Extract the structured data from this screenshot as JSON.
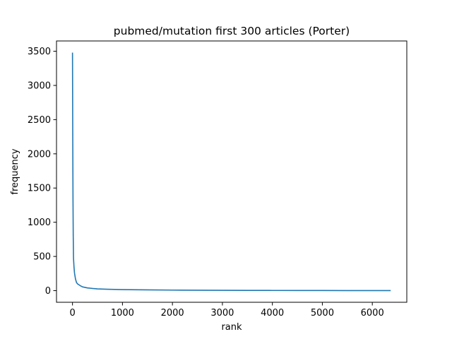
{
  "chart_data": {
    "type": "line",
    "title": "pubmed/mutation first 300 articles (Porter)",
    "xlabel": "rank",
    "ylabel": "frequency",
    "xlim": [
      -320,
      6690
    ],
    "ylim": [
      -170,
      3650
    ],
    "xticks": [
      0,
      1000,
      2000,
      3000,
      4000,
      5000,
      6000
    ],
    "yticks": [
      0,
      500,
      1000,
      1500,
      2000,
      2500,
      3000,
      3500
    ],
    "grid": false,
    "line_color": "#1f77b4",
    "series": [
      {
        "x": [
          0,
          5,
          10,
          15,
          20,
          30,
          40,
          60,
          80,
          100,
          150,
          200,
          300,
          400,
          500,
          700,
          1000,
          1500,
          2000,
          2500,
          3000,
          3500,
          4000,
          4500,
          5000,
          5500,
          6000,
          6367
        ],
        "y": [
          3480,
          2300,
          1350,
          800,
          480,
          350,
          260,
          170,
          120,
          100,
          75,
          55,
          40,
          32,
          26,
          20,
          15,
          11,
          8,
          6,
          5,
          4,
          3,
          2,
          2,
          1,
          1,
          1
        ]
      }
    ]
  }
}
